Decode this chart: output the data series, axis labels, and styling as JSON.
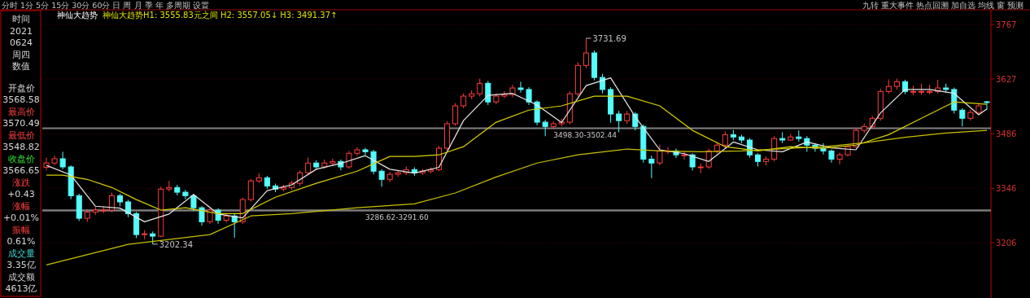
{
  "chart_data": {
    "type": "candlestick",
    "title": "神仙大趋势",
    "subtitle": "神仙大趋势H1: 3555.83元之间 H2: 3557.05↓ H3: 3491.37↑",
    "annotations": [
      "分时 1分 5分 15分 30分 60分 日 周 月 季 年 多周期 设置",
      "九转 重大事件 热点回溯 加自选 均线 窗 预测",
      "时间",
      "2021",
      "0624",
      "周四",
      "数值",
      "开盘价",
      "3568.58",
      "最高价",
      "3570.49",
      "最低价",
      "3548.82",
      "收盘价",
      "3566.65",
      "涨跌",
      "+0.43",
      "涨幅",
      "+0.01%",
      "振幅",
      "0.61%",
      "成交量",
      "3.35亿",
      "成交额",
      "4613亿",
      "3731.69",
      "3202.34"
    ],
    "categories": [
      null,
      null,
      null,
      null,
      null,
      null,
      null,
      null,
      null,
      null,
      null,
      null,
      null,
      null,
      null,
      null,
      null,
      null,
      null,
      null,
      null,
      null,
      null,
      null,
      null,
      null,
      null,
      null,
      null,
      null,
      null,
      null,
      null,
      null,
      null,
      null,
      null,
      null,
      null,
      null,
      null,
      null,
      null,
      null,
      null,
      null,
      null,
      null,
      null,
      null,
      null,
      null,
      null,
      null,
      null,
      null,
      null,
      null,
      null,
      null,
      null,
      null,
      null,
      null,
      null,
      null,
      null,
      null,
      null,
      null,
      null,
      null,
      null,
      null,
      null,
      null,
      null,
      null,
      null,
      null,
      null,
      null,
      null,
      null,
      null,
      null,
      null,
      null,
      null,
      null,
      null,
      null,
      null,
      null,
      null,
      null,
      null,
      null,
      null,
      null,
      null,
      null,
      null,
      null,
      null,
      null,
      null,
      null,
      null,
      null,
      null,
      null,
      null,
      null,
      null,
      null
    ],
    "colors": [
      "#ff3c3c",
      "#ff3c3c",
      "#54fcfc",
      "#54fcfc",
      "#54fcfc",
      "#ff3c3c",
      "#ff3c3c",
      "#ff3c3c",
      "#ff3c3c",
      "#54fcfc",
      "#54fcfc",
      "#54fcfc",
      "#ff3c3c",
      "#54fcfc",
      "#ff3c3c",
      "#ff3c3c",
      "#54fcfc",
      "#54fcfc",
      "#54fcfc",
      "#54fcfc",
      "#ff3c3c",
      "#54fcfc",
      "#ff3c3c",
      "#54fcfc",
      "#ff3c3c",
      "#ff3c3c",
      "#ff3c3c",
      "#54fcfc",
      "#54fcfc",
      "#ff3c3c",
      "#ff3c3c",
      "#ff3c3c",
      "#ff3c3c",
      "#54fcfc",
      "#ff3c3c",
      "#ff3c3c",
      "#54fcfc",
      "#ff3c3c",
      "#ff3c3c",
      "#54fcfc",
      "#54fcfc",
      "#54fcfc",
      "#ff3c3c",
      "#ff3c3c",
      "#ff3c3c",
      "#54fcfc",
      "#ff3c3c",
      "#ff3c3c",
      "#ff3c3c",
      "#ff3c3c",
      "#ff3c3c",
      "#ff3c3c",
      "#ff3c3c",
      "#ff3c3c",
      "#54fcfc",
      "#ff3c3c",
      "#ff3c3c",
      "#ff3c3c",
      "#54fcfc",
      "#54fcfc",
      "#54fcfc",
      "#54fcfc",
      "#ff3c3c",
      "#ff3c3c",
      "#ff3c3c",
      "#ff3c3c",
      "#ff3c3c",
      "#54fcfc",
      "#54fcfc",
      "#54fcfc",
      "#54fcfc",
      "#ff3c3c",
      "#54fcfc",
      "#54fcfc",
      "#54fcfc",
      "#ff3c3c",
      "#ff3c3c",
      "#54fcfc",
      "#ff3c3c",
      "#54fcfc",
      "#ff3c3c",
      "#ff3c3c",
      "#ff3c3c",
      "#ff3c3c",
      "#54fcfc",
      "#54fcfc",
      "#54fcfc",
      "#54fcfc",
      "#ff3c3c",
      "#ff3c3c",
      "#54fcfc",
      "#ff3c3c",
      "#54fcfc",
      "#54fcfc",
      "#54fcfc",
      "#54fcfc",
      "#54fcfc",
      "#ff3c3c",
      "#ff3c3c",
      "#ff3c3c",
      "#ff3c3c",
      "#ff3c3c",
      "#ff3c3c",
      "#ff3c3c",
      "#ff3c3c",
      "#54fcfc",
      "#ff3c3c",
      "#ff3c3c",
      "#ff3c3c",
      "#ff3c3c",
      "#54fcfc",
      "#54fcfc",
      "#54fcfc",
      "#ff3c3c",
      "#ff3c3c",
      "#54fcfc"
    ],
    "ohlc": [
      [
        3400,
        3425,
        3392,
        3411
      ],
      [
        3411,
        3430,
        3405,
        3422
      ],
      [
        3422,
        3440,
        3395,
        3401
      ],
      [
        3401,
        3405,
        3318,
        3327
      ],
      [
        3327,
        3332,
        3262,
        3269
      ],
      [
        3269,
        3292,
        3260,
        3285
      ],
      [
        3285,
        3298,
        3278,
        3290
      ],
      [
        3290,
        3300,
        3282,
        3290
      ],
      [
        3290,
        3335,
        3284,
        3327
      ],
      [
        3327,
        3332,
        3300,
        3311
      ],
      [
        3311,
        3316,
        3272,
        3281
      ],
      [
        3281,
        3285,
        3218,
        3227
      ],
      [
        3227,
        3238,
        3215,
        3229
      ],
      [
        3229,
        3235,
        3202.34,
        3223
      ],
      [
        3223,
        3350,
        3220,
        3344
      ],
      [
        3344,
        3365,
        3338,
        3348
      ],
      [
        3348,
        3355,
        3328,
        3336
      ],
      [
        3336,
        3342,
        3318,
        3327
      ],
      [
        3327,
        3332,
        3288,
        3296
      ],
      [
        3296,
        3300,
        3250,
        3260
      ],
      [
        3260,
        3296,
        3255,
        3290
      ],
      [
        3290,
        3295,
        3255,
        3264
      ],
      [
        3264,
        3282,
        3258,
        3275
      ],
      [
        3275,
        3280,
        3219,
        3260
      ],
      [
        3260,
        3322,
        3255,
        3317
      ],
      [
        3317,
        3370,
        3312,
        3365
      ],
      [
        3365,
        3385,
        3360,
        3373
      ],
      [
        3373,
        3378,
        3345,
        3352
      ],
      [
        3352,
        3358,
        3336,
        3344
      ],
      [
        3344,
        3355,
        3338,
        3348
      ],
      [
        3348,
        3365,
        3342,
        3359
      ],
      [
        3359,
        3392,
        3352,
        3386
      ],
      [
        3386,
        3425,
        3380,
        3411
      ],
      [
        3411,
        3418,
        3394,
        3401
      ],
      [
        3401,
        3420,
        3396,
        3411
      ],
      [
        3411,
        3422,
        3404,
        3415
      ],
      [
        3415,
        3420,
        3392,
        3401
      ],
      [
        3401,
        3442,
        3396,
        3436
      ],
      [
        3436,
        3452,
        3430,
        3445
      ],
      [
        3445,
        3450,
        3432,
        3440
      ],
      [
        3440,
        3445,
        3382,
        3390
      ],
      [
        3390,
        3395,
        3350,
        3369
      ],
      [
        3369,
        3388,
        3362,
        3382
      ],
      [
        3382,
        3392,
        3376,
        3386
      ],
      [
        3386,
        3402,
        3380,
        3394
      ],
      [
        3394,
        3400,
        3378,
        3386
      ],
      [
        3386,
        3396,
        3380,
        3390
      ],
      [
        3390,
        3400,
        3385,
        3394
      ],
      [
        3394,
        3455,
        3390,
        3449
      ],
      [
        3449,
        3518,
        3444,
        3512
      ],
      [
        3512,
        3565,
        3506,
        3558
      ],
      [
        3558,
        3590,
        3552,
        3583
      ],
      [
        3583,
        3598,
        3575,
        3589
      ],
      [
        3589,
        3628,
        3582,
        3616
      ],
      [
        3616,
        3622,
        3560,
        3568
      ],
      [
        3568,
        3590,
        3562,
        3583
      ],
      [
        3583,
        3596,
        3578,
        3587
      ],
      [
        3587,
        3612,
        3580,
        3604
      ],
      [
        3604,
        3620,
        3592,
        3600
      ],
      [
        3600,
        3606,
        3560,
        3568
      ],
      [
        3568,
        3572,
        3508,
        3516
      ],
      [
        3516,
        3522,
        3480,
        3505
      ],
      [
        3505,
        3518,
        3498,
        3512
      ],
      [
        3512,
        3525,
        3505,
        3516
      ],
      [
        3516,
        3595,
        3510,
        3589
      ],
      [
        3589,
        3670,
        3582,
        3662
      ],
      [
        3662,
        3731.69,
        3655,
        3694
      ],
      [
        3694,
        3700,
        3624,
        3631
      ],
      [
        3631,
        3640,
        3590,
        3600
      ],
      [
        3600,
        3606,
        3515,
        3537
      ],
      [
        3537,
        3545,
        3490,
        3520
      ],
      [
        3520,
        3545,
        3512,
        3537
      ],
      [
        3537,
        3542,
        3495,
        3505
      ],
      [
        3505,
        3510,
        3412,
        3421
      ],
      [
        3421,
        3430,
        3372,
        3411
      ],
      [
        3411,
        3458,
        3405,
        3442
      ],
      [
        3442,
        3452,
        3434,
        3442
      ],
      [
        3442,
        3448,
        3424,
        3432
      ],
      [
        3432,
        3440,
        3420,
        3432
      ],
      [
        3432,
        3436,
        3392,
        3401
      ],
      [
        3401,
        3410,
        3385,
        3401
      ],
      [
        3401,
        3448,
        3396,
        3442
      ],
      [
        3442,
        3465,
        3436,
        3457
      ],
      [
        3457,
        3492,
        3450,
        3484
      ],
      [
        3484,
        3496,
        3470,
        3478
      ],
      [
        3478,
        3484,
        3462,
        3470
      ],
      [
        3470,
        3475,
        3425,
        3432
      ],
      [
        3432,
        3436,
        3402,
        3415
      ],
      [
        3415,
        3428,
        3405,
        3421
      ],
      [
        3421,
        3480,
        3415,
        3474
      ],
      [
        3474,
        3490,
        3462,
        3470
      ],
      [
        3470,
        3486,
        3468,
        3478
      ],
      [
        3478,
        3495,
        3466,
        3474
      ],
      [
        3474,
        3480,
        3440,
        3457
      ],
      [
        3457,
        3462,
        3440,
        3449
      ],
      [
        3449,
        3462,
        3433,
        3442
      ],
      [
        3442,
        3446,
        3412,
        3421
      ],
      [
        3421,
        3438,
        3408,
        3432
      ],
      [
        3432,
        3460,
        3428,
        3453
      ],
      [
        3453,
        3502,
        3448,
        3495
      ],
      [
        3495,
        3512,
        3488,
        3505
      ],
      [
        3505,
        3532,
        3498,
        3526
      ],
      [
        3526,
        3602,
        3520,
        3595
      ],
      [
        3595,
        3626,
        3590,
        3608
      ],
      [
        3608,
        3628,
        3600,
        3620
      ],
      [
        3620,
        3625,
        3588,
        3595
      ],
      [
        3595,
        3610,
        3585,
        3595
      ],
      [
        3595,
        3615,
        3586,
        3595
      ],
      [
        3595,
        3612,
        3587,
        3595
      ],
      [
        3595,
        3625,
        3590,
        3604
      ],
      [
        3604,
        3615,
        3592,
        3600
      ],
      [
        3600,
        3605,
        3538,
        3547
      ],
      [
        3547,
        3552,
        3505,
        3526
      ],
      [
        3526,
        3548,
        3520,
        3541
      ],
      [
        3541,
        3565,
        3535,
        3558
      ],
      [
        3568.58,
        3570.49,
        3548.82,
        3566.65
      ]
    ],
    "series": [
      {
        "type": "line",
        "color": "#e8e8e8",
        "values": [
          3405,
          null,
          null,
          3380,
          null,
          null,
          3300,
          null,
          null,
          3295,
          null,
          null,
          3260,
          null,
          null,
          3280,
          null,
          null,
          3330,
          null,
          null,
          3280,
          null,
          null,
          3270,
          null,
          null,
          3340,
          null,
          null,
          3355,
          null,
          null,
          3395,
          null,
          null,
          3410,
          null,
          null,
          3430,
          null,
          null,
          3395,
          null,
          null,
          3385,
          null,
          null,
          3400,
          null,
          null,
          3520,
          null,
          null,
          3585,
          null,
          null,
          3590,
          null,
          null,
          3560,
          null,
          null,
          3515,
          null,
          null,
          3610,
          null,
          null,
          3630,
          null,
          null,
          3530,
          null,
          null,
          3445,
          null,
          null,
          3435,
          null,
          null,
          3415,
          null,
          null,
          3465,
          null,
          null,
          3445,
          null,
          null,
          3440,
          null,
          null,
          3465,
          null,
          null,
          3450,
          null,
          null,
          3445,
          null,
          null,
          3540,
          null,
          null,
          3600,
          null,
          null,
          3600,
          null,
          null,
          3590,
          null,
          null,
          3535,
          3550
        ]
      },
      {
        "type": "line",
        "color": "#d8d000",
        "values": [
          3380,
          null,
          3380,
          null,
          null,
          3369,
          null,
          null,
          3348,
          null,
          null,
          3317,
          null,
          null,
          3290,
          null,
          null,
          3296,
          null,
          null,
          null,
          3281,
          null,
          null,
          3281,
          null,
          null,
          null,
          3323,
          null,
          null,
          null,
          null,
          3359,
          null,
          null,
          null,
          null,
          3390,
          null,
          null,
          null,
          3428,
          null,
          null,
          3428,
          null,
          null,
          3432,
          null,
          null,
          3453,
          null,
          null,
          null,
          3516,
          null,
          null,
          null,
          3547,
          null,
          null,
          null,
          3558,
          null,
          null,
          null,
          3583,
          null,
          null,
          null,
          3583,
          null,
          null,
          null,
          3558,
          null,
          null,
          null,
          3495,
          null,
          null,
          null,
          3453,
          null,
          null,
          null,
          3442,
          null,
          null,
          null,
          3453,
          null,
          null,
          null,
          3449,
          null,
          null,
          null,
          3457,
          null,
          null,
          null,
          3484,
          null,
          null,
          null,
          3526,
          null,
          null,
          null,
          3568,
          null,
          null,
          null,
          3562
        ]
      },
      {
        "type": "line",
        "color": "#c8c000",
        "values": [
          3149,
          null,
          null,
          null,
          null,
          null,
          null,
          null,
          null,
          null,
          3202,
          null,
          null,
          null,
          null,
          null,
          null,
          null,
          null,
          null,
          3227,
          null,
          null,
          null,
          null,
          3275,
          null,
          null,
          null,
          null,
          3281,
          null,
          null,
          null,
          null,
          null,
          null,
          null,
          3296,
          null,
          null,
          null,
          null,
          null,
          null,
          3306,
          null,
          null,
          null,
          null,
          3334,
          null,
          null,
          null,
          null,
          3375,
          null,
          null,
          null,
          null,
          3411,
          null,
          null,
          null,
          null,
          3432,
          null,
          null,
          null,
          null,
          null,
          3447,
          null,
          null,
          null,
          3442,
          null,
          null,
          null,
          null,
          3440,
          null,
          null,
          null,
          null,
          3442,
          null,
          null,
          null,
          null,
          null,
          3449,
          null,
          null,
          null,
          3453,
          null,
          null,
          null,
          null,
          3463,
          null,
          null,
          null,
          null,
          3477,
          null,
          null,
          null,
          null,
          3488,
          null,
          null,
          null,
          null,
          3495
        ]
      }
    ],
    "bands": [
      {
        "axis": "y",
        "from": 3498.3,
        "to": 3502.44,
        "label": "3498.30-3502.44",
        "color": "#808080"
      },
      {
        "axis": "y",
        "from": 3286.62,
        "to": 3291.6,
        "label": "3286.62-3291.60",
        "color": "#808080"
      }
    ],
    "ylim": [
      3064,
      3805
    ],
    "yticks": [
      3206,
      3346,
      3486,
      3627,
      3767
    ],
    "grid": "y"
  }
}
